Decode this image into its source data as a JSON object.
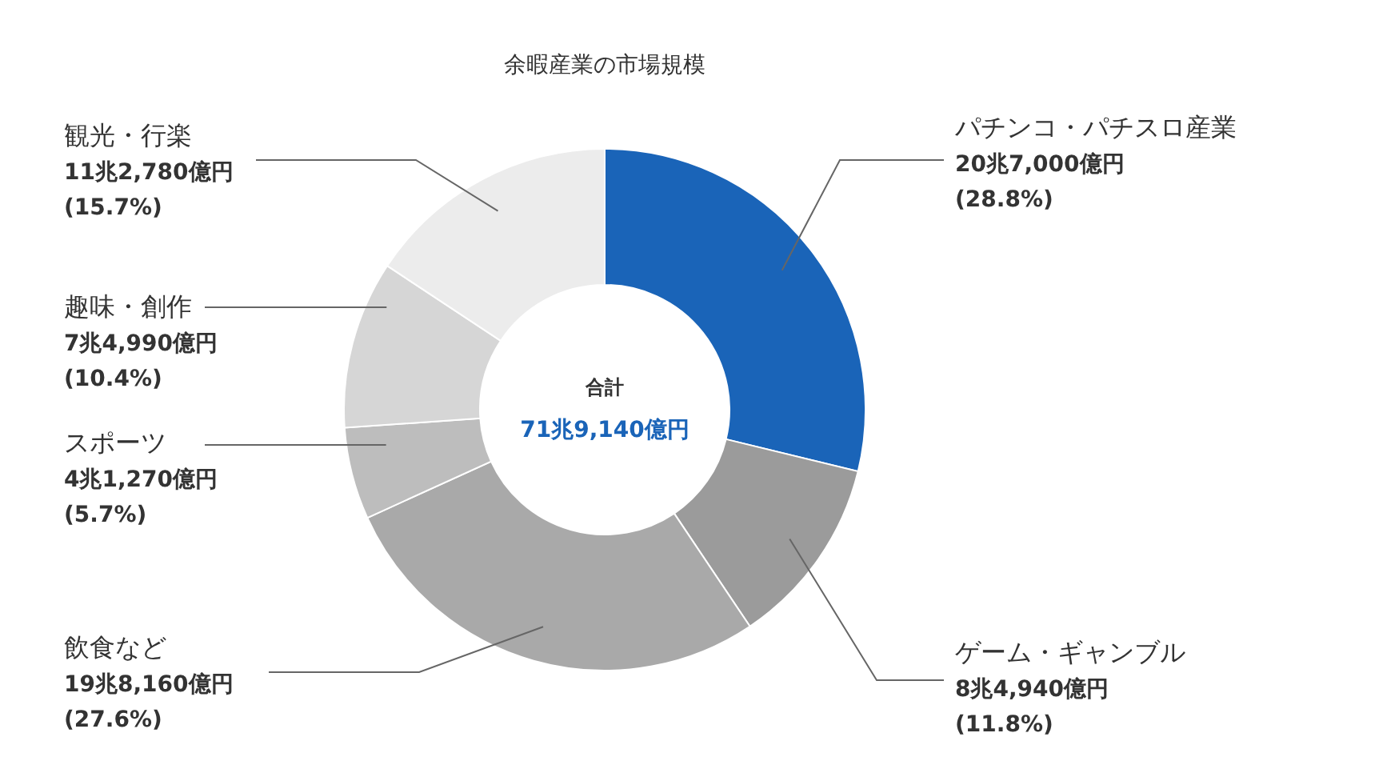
{
  "chart_data": {
    "type": "donut",
    "title": "余暇産業の市場規模",
    "categories": [
      "パチンコ・パチスロ産業",
      "ゲーム・ギャンブル",
      "飲食など",
      "スポーツ",
      "趣味・創作",
      "観光・行楽"
    ],
    "values": [
      28.8,
      11.8,
      27.6,
      5.7,
      10.4,
      15.7
    ],
    "value_labels": [
      "20兆7,000億円\n(28.8%)",
      "8兆4,940億円\n(11.8%)",
      "19兆8,160億円\n(27.6%)",
      "4兆1,270億円\n(5.7%)",
      "7兆4,990億円\n(10.4%)",
      "11兆2,780億円\n(15.7%)"
    ],
    "colors": [
      "#1a64b8",
      "#9b9b9b",
      "#a9a9a9",
      "#bdbdbd",
      "#d6d6d6",
      "#ececec"
    ],
    "annotations": [
      "合計",
      "71兆9,140億円"
    ],
    "legend": false
  }
}
